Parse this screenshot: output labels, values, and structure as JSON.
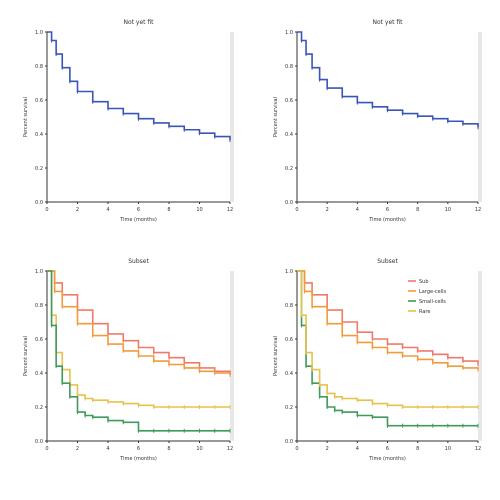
{
  "chart_data": [
    {
      "type": "line",
      "title": "Not yet fit",
      "xlabel": "Time (months)",
      "ylabel": "Percent survival",
      "xlim": [
        0,
        12
      ],
      "ylim": [
        0,
        1
      ],
      "xticks": [
        "0",
        "2",
        "4",
        "6",
        "8",
        "10",
        "12"
      ],
      "yticks": [
        "0.0",
        "0.2",
        "0.4",
        "0.6",
        "0.8",
        "1.0"
      ],
      "series": [
        {
          "color": "#3a55b8",
          "x": [
            0,
            0.3,
            0.6,
            1,
            1.5,
            2,
            3,
            4,
            5,
            6,
            7,
            8,
            9,
            10,
            11,
            12
          ],
          "y": [
            1.0,
            0.95,
            0.87,
            0.79,
            0.71,
            0.65,
            0.59,
            0.55,
            0.52,
            0.49,
            0.465,
            0.445,
            0.425,
            0.405,
            0.385,
            0.365
          ]
        }
      ]
    },
    {
      "type": "line",
      "title": "Not yet fit",
      "xlabel": "Time (months)",
      "ylabel": "Percent survival",
      "xlim": [
        0,
        12
      ],
      "ylim": [
        0,
        1
      ],
      "xticks": [
        "0",
        "2",
        "4",
        "6",
        "8",
        "10",
        "12"
      ],
      "yticks": [
        "0.0",
        "0.2",
        "0.4",
        "0.6",
        "0.8",
        "1.0"
      ],
      "series": [
        {
          "color": "#3a55b8",
          "x": [
            0,
            0.3,
            0.6,
            1,
            1.5,
            2,
            3,
            4,
            5,
            6,
            7,
            8,
            9,
            10,
            11,
            12
          ],
          "y": [
            1.0,
            0.95,
            0.87,
            0.79,
            0.72,
            0.67,
            0.62,
            0.585,
            0.56,
            0.54,
            0.52,
            0.505,
            0.49,
            0.475,
            0.46,
            0.44
          ]
        }
      ]
    },
    {
      "type": "line",
      "title": "Subset",
      "xlabel": "Time (months)",
      "ylabel": "Percent survival",
      "xlim": [
        0,
        12
      ],
      "ylim": [
        0,
        1
      ],
      "xticks": [
        "0",
        "2",
        "4",
        "6",
        "8",
        "10",
        "12"
      ],
      "yticks": [
        "0.0",
        "0.2",
        "0.4",
        "0.6",
        "0.8",
        "1.0"
      ],
      "series": [
        {
          "color": "#f07a6a",
          "x": [
            0,
            0.5,
            1,
            2,
            3,
            4,
            5,
            6,
            7,
            8,
            9,
            10,
            11,
            12
          ],
          "y": [
            1.0,
            0.93,
            0.86,
            0.77,
            0.69,
            0.63,
            0.59,
            0.55,
            0.52,
            0.49,
            0.46,
            0.43,
            0.41,
            0.39
          ]
        },
        {
          "color": "#f39a3a",
          "x": [
            0,
            0.5,
            1,
            2,
            3,
            4,
            5,
            6,
            7,
            8,
            9,
            10,
            11,
            12
          ],
          "y": [
            1.0,
            0.88,
            0.79,
            0.69,
            0.62,
            0.57,
            0.53,
            0.5,
            0.47,
            0.45,
            0.43,
            0.41,
            0.4,
            0.39
          ]
        },
        {
          "color": "#e6c24a",
          "x": [
            0,
            0.3,
            0.6,
            1,
            1.5,
            2,
            2.5,
            3,
            4,
            5,
            6,
            7,
            8,
            9,
            10,
            11,
            12
          ],
          "y": [
            1.0,
            0.74,
            0.52,
            0.42,
            0.33,
            0.27,
            0.25,
            0.24,
            0.23,
            0.22,
            0.21,
            0.2,
            0.2,
            0.2,
            0.2,
            0.2,
            0.2
          ]
        },
        {
          "color": "#3f9a5c",
          "x": [
            0,
            0.3,
            0.6,
            1,
            1.5,
            2,
            2.5,
            3,
            4,
            5,
            6,
            7,
            8,
            9,
            10,
            11,
            12
          ],
          "y": [
            1.0,
            0.68,
            0.44,
            0.34,
            0.26,
            0.17,
            0.15,
            0.14,
            0.12,
            0.11,
            0.06,
            0.06,
            0.06,
            0.06,
            0.06,
            0.06,
            0.06
          ]
        }
      ]
    },
    {
      "type": "line",
      "title": "Subset",
      "xlabel": "Time (months)",
      "ylabel": "Percent survival",
      "xlim": [
        0,
        12
      ],
      "ylim": [
        0,
        1
      ],
      "xticks": [
        "0",
        "2",
        "4",
        "6",
        "8",
        "10",
        "12"
      ],
      "yticks": [
        "0.0",
        "0.2",
        "0.4",
        "0.6",
        "0.8",
        "1.0"
      ],
      "legend": {
        "placement": "top-right",
        "labels": [
          "Sub",
          "Large-cells",
          "Small-cells",
          "Rare"
        ]
      },
      "series": [
        {
          "name": "Sub",
          "color": "#f07a6a",
          "x": [
            0,
            0.5,
            1,
            2,
            3,
            4,
            5,
            6,
            7,
            8,
            9,
            10,
            11,
            12
          ],
          "y": [
            1.0,
            0.93,
            0.86,
            0.77,
            0.7,
            0.64,
            0.6,
            0.57,
            0.55,
            0.53,
            0.51,
            0.49,
            0.47,
            0.45
          ]
        },
        {
          "name": "Large-cells",
          "color": "#f39a3a",
          "x": [
            0,
            0.5,
            1,
            2,
            3,
            4,
            5,
            6,
            7,
            8,
            9,
            10,
            11,
            12
          ],
          "y": [
            1.0,
            0.88,
            0.79,
            0.69,
            0.62,
            0.58,
            0.55,
            0.52,
            0.5,
            0.48,
            0.46,
            0.44,
            0.43,
            0.42
          ]
        },
        {
          "name": "Small-cells",
          "color": "#3f9a5c",
          "x": [
            0,
            0.3,
            0.6,
            1,
            1.5,
            2,
            2.5,
            3,
            4,
            5,
            6,
            7,
            8,
            9,
            10,
            11,
            12
          ],
          "y": [
            1.0,
            0.68,
            0.44,
            0.34,
            0.26,
            0.2,
            0.18,
            0.17,
            0.15,
            0.14,
            0.09,
            0.09,
            0.09,
            0.09,
            0.09,
            0.09,
            0.09
          ]
        },
        {
          "name": "Rare",
          "color": "#e6c24a",
          "x": [
            0,
            0.3,
            0.6,
            1,
            1.5,
            2,
            2.5,
            3,
            4,
            5,
            6,
            7,
            8,
            9,
            10,
            11,
            12
          ],
          "y": [
            1.0,
            0.74,
            0.52,
            0.42,
            0.33,
            0.28,
            0.26,
            0.25,
            0.24,
            0.22,
            0.21,
            0.2,
            0.2,
            0.2,
            0.2,
            0.2,
            0.2
          ]
        }
      ]
    }
  ]
}
